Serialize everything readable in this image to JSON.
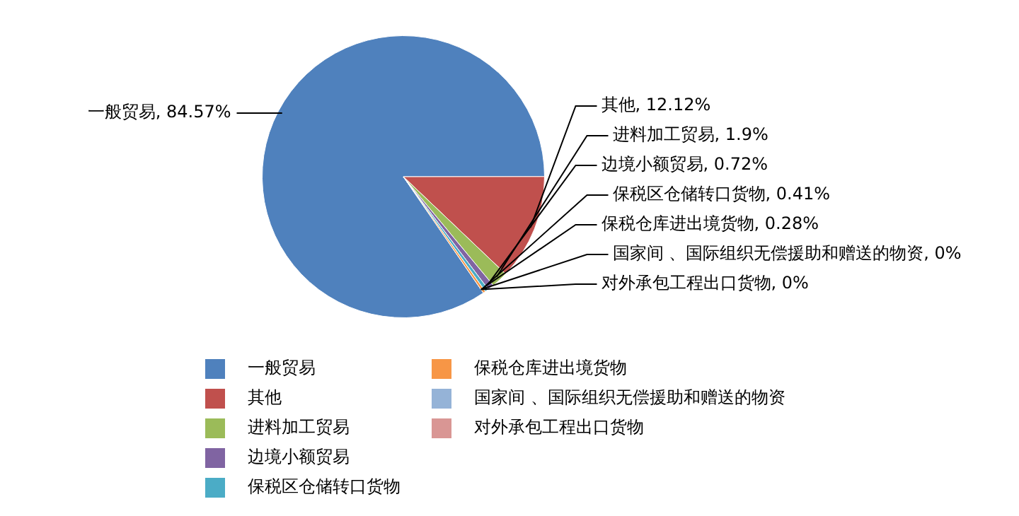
{
  "chart_data": {
    "type": "pie",
    "categories": [
      "一般贸易",
      "其他",
      "进料加工贸易",
      "边境小额贸易",
      "保税区仓储转口货物",
      "保税仓库进出境货物",
      "国家间 、国际组织无偿援助和赠送的物资",
      "对外承包工程出口货物"
    ],
    "values": [
      84.57,
      12.12,
      1.9,
      0.72,
      0.41,
      0.28,
      0,
      0
    ],
    "value_labels": [
      "一般贸易, 84.57%",
      "其他, 12.12%",
      "进料加工贸易, 1.9%",
      "边境小额贸易, 0.72%",
      "保税区仓储转口货物, 0.41%",
      "保税仓库进出境货物, 0.28%",
      "国家间 、国际组织无偿援助和赠送的物资, 0%",
      "对外承包工程出口货物, 0%"
    ],
    "colors": [
      "#4f81bd",
      "#c0504d",
      "#9bbb59",
      "#8064a2",
      "#4bacc6",
      "#f79646",
      "#95b3d7",
      "#d99694"
    ],
    "legend": "bottom"
  }
}
